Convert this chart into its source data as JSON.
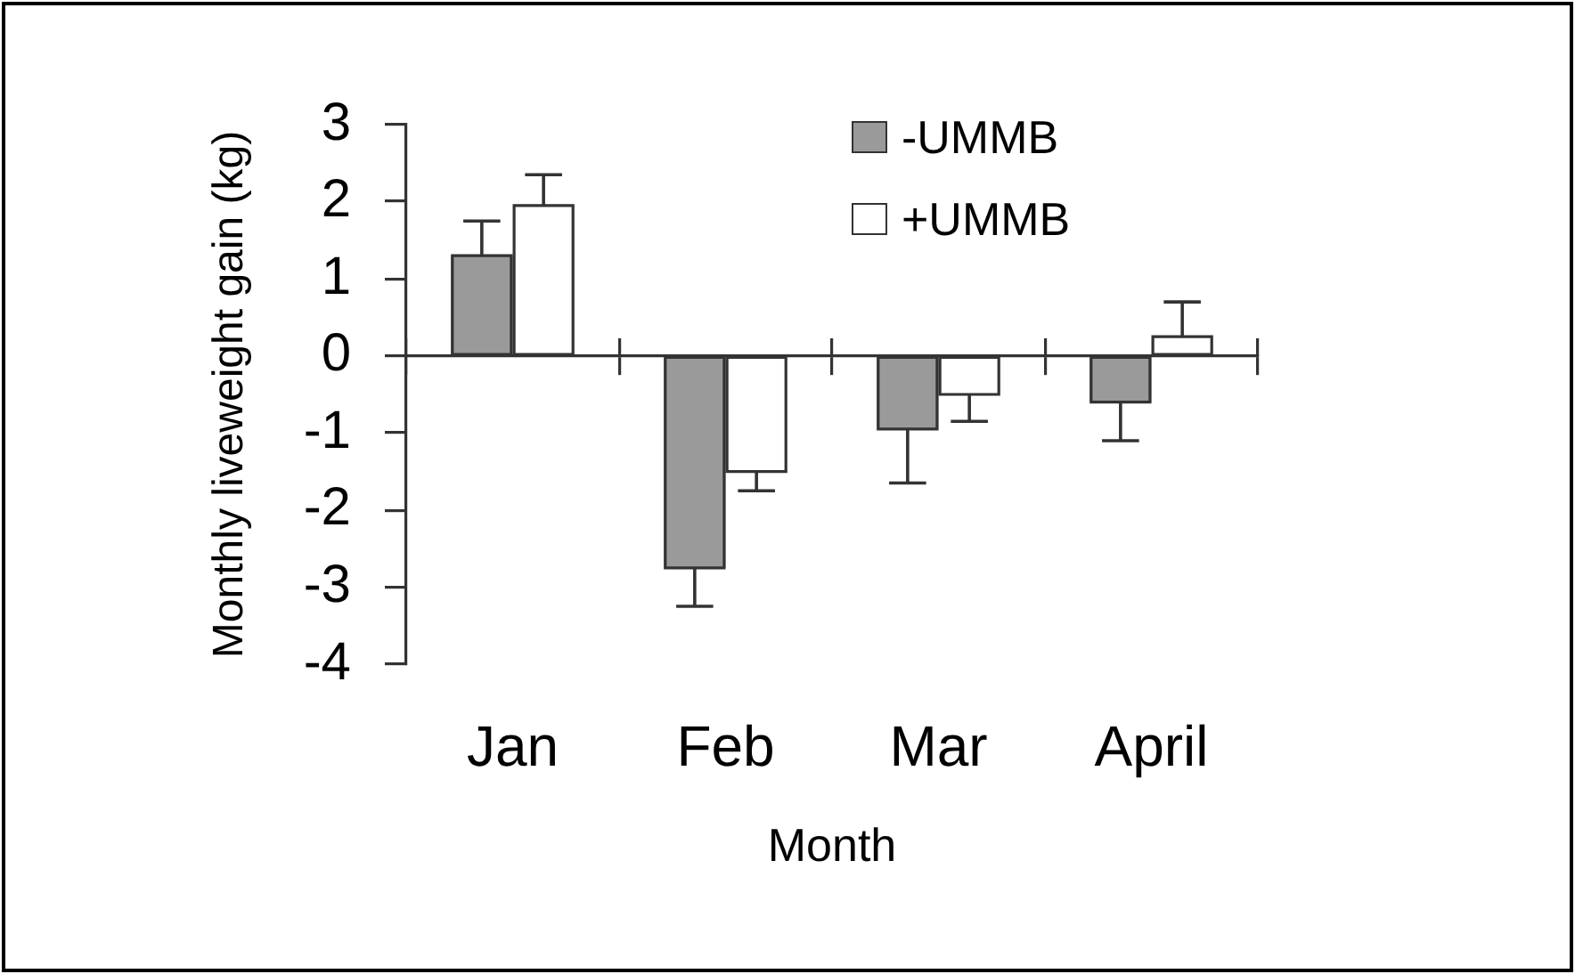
{
  "chart_data": {
    "type": "bar",
    "xlabel": "Month",
    "ylabel": "Monthly liveweight gain (kg)",
    "categories": [
      "Jan",
      "Feb",
      "Mar",
      "April"
    ],
    "series": [
      {
        "name": "-UMMB",
        "color": "#9a9a9a",
        "values": [
          1.3,
          -2.75,
          -0.95,
          -0.6
        ],
        "errors": [
          [
            1.3,
            1.75
          ],
          [
            -3.25,
            -2.75
          ],
          [
            -1.65,
            -0.95
          ],
          [
            -1.1,
            -0.6
          ]
        ]
      },
      {
        "name": "+UMMB",
        "color": "#ffffff",
        "values": [
          1.95,
          -1.5,
          -0.5,
          0.25
        ],
        "errors": [
          [
            1.95,
            2.35
          ],
          [
            -1.75,
            -1.5
          ],
          [
            -0.85,
            -0.5
          ],
          [
            0.25,
            0.7
          ]
        ]
      }
    ],
    "ylim": [
      -4,
      3
    ],
    "yticks": [
      -4,
      -3,
      -2,
      -1,
      0,
      1,
      2,
      3
    ],
    "legend": "top right"
  }
}
